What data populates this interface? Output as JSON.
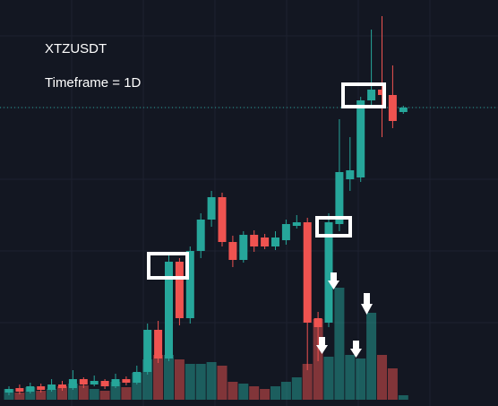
{
  "chart_data": {
    "type": "candlestick",
    "annotations": [
      "XTZUSDT",
      "Timeframe = 1D"
    ],
    "up_color": "#26a69a",
    "down_color": "#ef5350",
    "ylim": [
      0,
      453
    ],
    "volume_lim": [
      0,
      453
    ],
    "open": [
      15,
      20,
      16,
      22,
      18,
      24,
      20,
      30,
      24,
      28,
      22,
      30,
      26,
      38,
      85,
      53,
      161,
      98,
      173,
      208,
      233,
      183,
      163,
      191,
      188,
      178,
      185,
      201,
      205,
      98,
      93,
      203,
      253,
      255,
      341,
      353,
      347,
      328
    ],
    "high": [
      22,
      24,
      26,
      25,
      30,
      28,
      40,
      32,
      34,
      30,
      36,
      33,
      45,
      92,
      95,
      170,
      165,
      178,
      215,
      240,
      238,
      190,
      195,
      196,
      192,
      195,
      208,
      213,
      210,
      105,
      215,
      320,
      300,
      345,
      420,
      435,
      380,
      335
    ],
    "low": [
      12,
      13,
      14,
      15,
      16,
      17,
      18,
      20,
      22,
      19,
      20,
      23,
      24,
      35,
      48,
      50,
      90,
      92,
      165,
      200,
      178,
      155,
      160,
      172,
      175,
      174,
      180,
      198,
      40,
      50,
      88,
      195,
      240,
      250,
      335,
      300,
      310,
      326
    ],
    "close": [
      19,
      16,
      22,
      18,
      24,
      20,
      30,
      24,
      28,
      22,
      30,
      26,
      38,
      85,
      53,
      161,
      98,
      173,
      208,
      233,
      183,
      163,
      191,
      178,
      178,
      188,
      203,
      205,
      93,
      88,
      205,
      261,
      263,
      341,
      353,
      347,
      318,
      333
    ],
    "volume": [
      12,
      8,
      14,
      10,
      12,
      15,
      18,
      16,
      12,
      10,
      20,
      14,
      30,
      45,
      50,
      50,
      45,
      40,
      40,
      42,
      38,
      20,
      18,
      15,
      12,
      15,
      20,
      25,
      40,
      90,
      48,
      125,
      50,
      46,
      97,
      50,
      35,
      5
    ]
  }
}
